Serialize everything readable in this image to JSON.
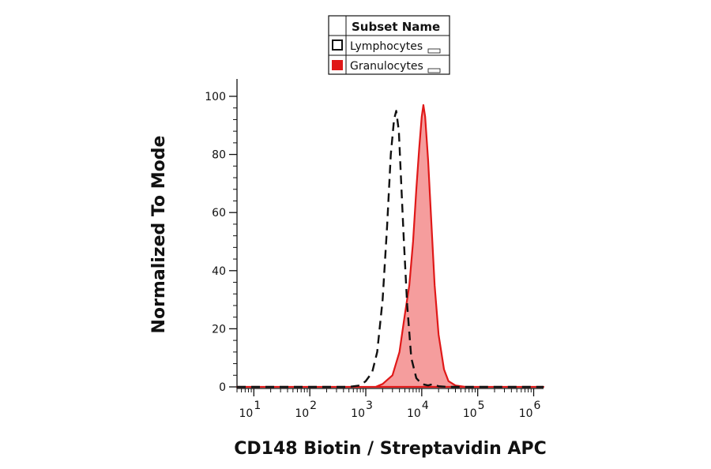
{
  "chart_data": {
    "type": "area",
    "xlabel": "CD148 Biotin / Streptavidin APC",
    "ylabel": "Normalized To Mode",
    "x_scale": "log",
    "xlim": [
      5,
      1500000
    ],
    "ylim": [
      0,
      100
    ],
    "x_ticks": [
      {
        "base": "10",
        "exp": "1",
        "value": 10
      },
      {
        "base": "10",
        "exp": "2",
        "value": 100
      },
      {
        "base": "10",
        "exp": "3",
        "value": 1000
      },
      {
        "base": "10",
        "exp": "4",
        "value": 10000
      },
      {
        "base": "10",
        "exp": "5",
        "value": 100000
      },
      {
        "base": "10",
        "exp": "6",
        "value": 1000000
      }
    ],
    "y_ticks": [
      {
        "label": "0",
        "value": 0
      },
      {
        "label": "20",
        "value": 20
      },
      {
        "label": "40",
        "value": 40
      },
      {
        "label": "60",
        "value": 60
      },
      {
        "label": "80",
        "value": 80
      },
      {
        "label": "100",
        "value": 100
      }
    ],
    "legend": {
      "header": "Subset Name",
      "placement": "top-center"
    },
    "series": [
      {
        "name": "Lymphocytes",
        "style": "dashed-outline",
        "color": "#111111",
        "points": [
          [
            5,
            0
          ],
          [
            500,
            0
          ],
          [
            800,
            0.5
          ],
          [
            1000,
            2
          ],
          [
            1300,
            5
          ],
          [
            1600,
            12
          ],
          [
            2000,
            30
          ],
          [
            2400,
            55
          ],
          [
            2800,
            80
          ],
          [
            3200,
            92
          ],
          [
            3500,
            95
          ],
          [
            3900,
            88
          ],
          [
            4300,
            70
          ],
          [
            4800,
            50
          ],
          [
            5500,
            28
          ],
          [
            6500,
            10
          ],
          [
            8000,
            3
          ],
          [
            10000,
            1
          ],
          [
            13000,
            0.5
          ],
          [
            16000,
            1
          ],
          [
            20000,
            0.2
          ],
          [
            30000,
            0
          ],
          [
            1500000,
            0
          ]
        ]
      },
      {
        "name": "Granulocytes",
        "style": "filled",
        "color": "#e01818",
        "fill": "#f59d9d",
        "points": [
          [
            5,
            0
          ],
          [
            1500,
            0
          ],
          [
            2000,
            1
          ],
          [
            3000,
            4
          ],
          [
            4000,
            12
          ],
          [
            5000,
            25
          ],
          [
            6000,
            35
          ],
          [
            7000,
            50
          ],
          [
            8000,
            68
          ],
          [
            9000,
            82
          ],
          [
            10000,
            93
          ],
          [
            10700,
            97
          ],
          [
            11500,
            93
          ],
          [
            13000,
            78
          ],
          [
            15000,
            55
          ],
          [
            17000,
            35
          ],
          [
            20000,
            18
          ],
          [
            25000,
            6
          ],
          [
            30000,
            2
          ],
          [
            40000,
            0.5
          ],
          [
            60000,
            0
          ],
          [
            1500000,
            0
          ]
        ]
      }
    ]
  }
}
